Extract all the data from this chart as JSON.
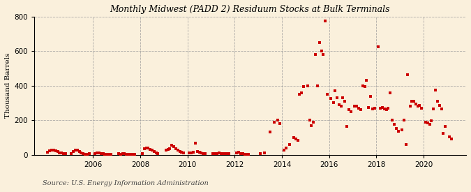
{
  "title": "Monthly Midwest (PADD 2) Residuum Stocks at Bulk Terminals",
  "ylabel": "Thousand Barrels",
  "source": "Source: U.S. Energy Information Administration",
  "bg_color": "#FAF0DC",
  "plot_bg": "#FAF0DC",
  "dot_color": "#CC0000",
  "ylim": [
    0,
    800
  ],
  "yticks": [
    0,
    200,
    400,
    600,
    800
  ],
  "xticks": [
    2006,
    2008,
    2010,
    2012,
    2014,
    2016,
    2018,
    2020
  ],
  "xlim": [
    2003.5,
    2021.8
  ],
  "data": [
    [
      2004.08,
      15
    ],
    [
      2004.17,
      22
    ],
    [
      2004.25,
      25
    ],
    [
      2004.33,
      28
    ],
    [
      2004.42,
      22
    ],
    [
      2004.5,
      18
    ],
    [
      2004.58,
      10
    ],
    [
      2004.67,
      12
    ],
    [
      2004.75,
      8
    ],
    [
      2004.83,
      5
    ],
    [
      2005.08,
      8
    ],
    [
      2005.17,
      20
    ],
    [
      2005.25,
      28
    ],
    [
      2005.33,
      25
    ],
    [
      2005.42,
      18
    ],
    [
      2005.5,
      12
    ],
    [
      2005.58,
      6
    ],
    [
      2005.67,
      4
    ],
    [
      2005.75,
      3
    ],
    [
      2005.83,
      5
    ],
    [
      2006.08,
      8
    ],
    [
      2006.17,
      10
    ],
    [
      2006.25,
      12
    ],
    [
      2006.33,
      8
    ],
    [
      2006.42,
      6
    ],
    [
      2006.5,
      4
    ],
    [
      2006.58,
      3
    ],
    [
      2006.67,
      3
    ],
    [
      2006.75,
      2
    ],
    [
      2007.08,
      5
    ],
    [
      2007.17,
      4
    ],
    [
      2007.25,
      5
    ],
    [
      2007.33,
      6
    ],
    [
      2007.42,
      4
    ],
    [
      2007.5,
      3
    ],
    [
      2007.58,
      3
    ],
    [
      2007.67,
      4
    ],
    [
      2007.75,
      3
    ],
    [
      2008.08,
      8
    ],
    [
      2008.17,
      35
    ],
    [
      2008.25,
      38
    ],
    [
      2008.33,
      40
    ],
    [
      2008.42,
      30
    ],
    [
      2008.5,
      25
    ],
    [
      2008.58,
      20
    ],
    [
      2008.67,
      12
    ],
    [
      2008.75,
      5
    ],
    [
      2009.08,
      25
    ],
    [
      2009.17,
      30
    ],
    [
      2009.25,
      35
    ],
    [
      2009.33,
      55
    ],
    [
      2009.42,
      45
    ],
    [
      2009.5,
      35
    ],
    [
      2009.58,
      28
    ],
    [
      2009.67,
      20
    ],
    [
      2009.75,
      15
    ],
    [
      2009.83,
      10
    ],
    [
      2010.08,
      10
    ],
    [
      2010.17,
      12
    ],
    [
      2010.25,
      15
    ],
    [
      2010.33,
      65
    ],
    [
      2010.42,
      18
    ],
    [
      2010.5,
      15
    ],
    [
      2010.58,
      10
    ],
    [
      2010.67,
      8
    ],
    [
      2010.75,
      5
    ],
    [
      2011.08,
      5
    ],
    [
      2011.17,
      6
    ],
    [
      2011.25,
      8
    ],
    [
      2011.33,
      10
    ],
    [
      2011.42,
      8
    ],
    [
      2011.5,
      6
    ],
    [
      2011.58,
      5
    ],
    [
      2011.67,
      8
    ],
    [
      2011.75,
      5
    ],
    [
      2012.08,
      12
    ],
    [
      2012.17,
      15
    ],
    [
      2012.25,
      6
    ],
    [
      2012.33,
      5
    ],
    [
      2012.42,
      4
    ],
    [
      2012.5,
      3
    ],
    [
      2012.58,
      2
    ],
    [
      2013.08,
      5
    ],
    [
      2013.25,
      10
    ],
    [
      2013.5,
      130
    ],
    [
      2013.67,
      190
    ],
    [
      2013.83,
      200
    ],
    [
      2013.92,
      180
    ],
    [
      2014.08,
      25
    ],
    [
      2014.17,
      40
    ],
    [
      2014.33,
      60
    ],
    [
      2014.5,
      100
    ],
    [
      2014.58,
      90
    ],
    [
      2014.67,
      85
    ],
    [
      2014.75,
      350
    ],
    [
      2014.83,
      360
    ],
    [
      2014.92,
      395
    ],
    [
      2015.08,
      400
    ],
    [
      2015.17,
      200
    ],
    [
      2015.25,
      170
    ],
    [
      2015.33,
      190
    ],
    [
      2015.42,
      580
    ],
    [
      2015.5,
      400
    ],
    [
      2015.58,
      650
    ],
    [
      2015.67,
      600
    ],
    [
      2015.75,
      580
    ],
    [
      2015.83,
      775
    ],
    [
      2015.92,
      350
    ],
    [
      2016.08,
      325
    ],
    [
      2016.17,
      300
    ],
    [
      2016.25,
      370
    ],
    [
      2016.33,
      330
    ],
    [
      2016.42,
      290
    ],
    [
      2016.5,
      280
    ],
    [
      2016.58,
      330
    ],
    [
      2016.67,
      310
    ],
    [
      2016.75,
      165
    ],
    [
      2016.83,
      260
    ],
    [
      2016.92,
      250
    ],
    [
      2017.08,
      280
    ],
    [
      2017.17,
      280
    ],
    [
      2017.25,
      270
    ],
    [
      2017.33,
      260
    ],
    [
      2017.42,
      400
    ],
    [
      2017.5,
      395
    ],
    [
      2017.58,
      430
    ],
    [
      2017.67,
      275
    ],
    [
      2017.75,
      340
    ],
    [
      2017.83,
      265
    ],
    [
      2017.92,
      270
    ],
    [
      2018.08,
      625
    ],
    [
      2018.17,
      270
    ],
    [
      2018.25,
      275
    ],
    [
      2018.33,
      265
    ],
    [
      2018.42,
      260
    ],
    [
      2018.5,
      270
    ],
    [
      2018.58,
      360
    ],
    [
      2018.67,
      200
    ],
    [
      2018.75,
      175
    ],
    [
      2018.83,
      150
    ],
    [
      2018.92,
      135
    ],
    [
      2019.08,
      145
    ],
    [
      2019.17,
      200
    ],
    [
      2019.25,
      60
    ],
    [
      2019.33,
      465
    ],
    [
      2019.42,
      280
    ],
    [
      2019.5,
      310
    ],
    [
      2019.58,
      310
    ],
    [
      2019.67,
      295
    ],
    [
      2019.75,
      280
    ],
    [
      2019.83,
      285
    ],
    [
      2019.92,
      270
    ],
    [
      2020.08,
      190
    ],
    [
      2020.17,
      185
    ],
    [
      2020.25,
      175
    ],
    [
      2020.33,
      195
    ],
    [
      2020.42,
      265
    ],
    [
      2020.5,
      375
    ],
    [
      2020.58,
      310
    ],
    [
      2020.67,
      285
    ],
    [
      2020.75,
      265
    ],
    [
      2020.83,
      125
    ],
    [
      2020.92,
      165
    ],
    [
      2021.08,
      105
    ],
    [
      2021.17,
      90
    ]
  ]
}
